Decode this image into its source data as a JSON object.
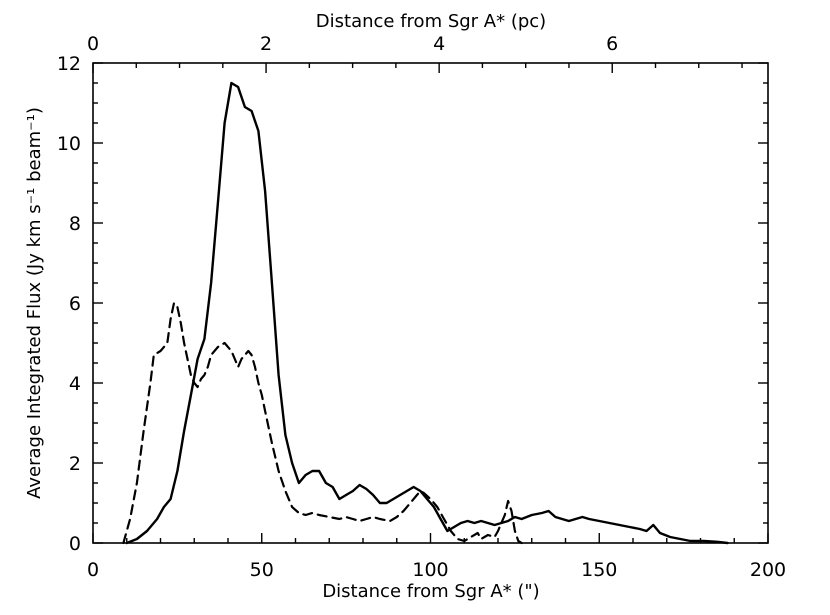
{
  "chart_data": {
    "type": "line",
    "xlabel": "Distance from Sgr A* (\")",
    "x2label": "Distance from Sgr A* (pc)",
    "ylabel": "Average Integrated Flux (Jy km s⁻¹ beam⁻¹)",
    "xlim": [
      0,
      200
    ],
    "ylim": [
      0,
      12
    ],
    "x_ticks": [
      0,
      50,
      100,
      150,
      200
    ],
    "y_ticks": [
      0,
      2,
      4,
      6,
      8,
      10,
      12
    ],
    "x2lim": [
      0,
      7.8
    ],
    "x2_ticks": [
      0,
      2,
      4,
      6
    ],
    "grid": false,
    "series": [
      {
        "style": "solid",
        "color": "#000000",
        "points": [
          [
            10,
            0.0
          ],
          [
            13,
            0.1
          ],
          [
            16,
            0.3
          ],
          [
            19,
            0.6
          ],
          [
            21,
            0.9
          ],
          [
            23,
            1.1
          ],
          [
            25,
            1.8
          ],
          [
            27,
            2.8
          ],
          [
            29,
            3.7
          ],
          [
            31,
            4.6
          ],
          [
            33,
            5.1
          ],
          [
            35,
            6.5
          ],
          [
            37,
            8.5
          ],
          [
            39,
            10.5
          ],
          [
            41,
            11.5
          ],
          [
            43,
            11.4
          ],
          [
            45,
            10.9
          ],
          [
            47,
            10.8
          ],
          [
            49,
            10.3
          ],
          [
            51,
            8.8
          ],
          [
            53,
            6.5
          ],
          [
            55,
            4.2
          ],
          [
            57,
            2.7
          ],
          [
            59,
            2.0
          ],
          [
            61,
            1.5
          ],
          [
            63,
            1.7
          ],
          [
            65,
            1.8
          ],
          [
            67,
            1.8
          ],
          [
            69,
            1.5
          ],
          [
            71,
            1.4
          ],
          [
            73,
            1.1
          ],
          [
            75,
            1.2
          ],
          [
            77,
            1.3
          ],
          [
            79,
            1.45
          ],
          [
            81,
            1.35
          ],
          [
            83,
            1.2
          ],
          [
            85,
            1.0
          ],
          [
            87,
            1.0
          ],
          [
            89,
            1.1
          ],
          [
            91,
            1.2
          ],
          [
            93,
            1.3
          ],
          [
            95,
            1.4
          ],
          [
            97,
            1.3
          ],
          [
            99,
            1.1
          ],
          [
            101,
            0.9
          ],
          [
            103,
            0.6
          ],
          [
            105,
            0.3
          ],
          [
            107,
            0.4
          ],
          [
            109,
            0.5
          ],
          [
            111,
            0.55
          ],
          [
            113,
            0.5
          ],
          [
            115,
            0.55
          ],
          [
            117,
            0.5
          ],
          [
            119,
            0.45
          ],
          [
            121,
            0.5
          ],
          [
            123,
            0.55
          ],
          [
            125,
            0.65
          ],
          [
            127,
            0.6
          ],
          [
            130,
            0.7
          ],
          [
            133,
            0.75
          ],
          [
            135,
            0.8
          ],
          [
            137,
            0.65
          ],
          [
            139,
            0.6
          ],
          [
            141,
            0.55
          ],
          [
            143,
            0.6
          ],
          [
            145,
            0.65
          ],
          [
            147,
            0.6
          ],
          [
            150,
            0.55
          ],
          [
            153,
            0.5
          ],
          [
            156,
            0.45
          ],
          [
            159,
            0.4
          ],
          [
            162,
            0.35
          ],
          [
            164,
            0.3
          ],
          [
            166,
            0.45
          ],
          [
            168,
            0.25
          ],
          [
            171,
            0.15
          ],
          [
            174,
            0.1
          ],
          [
            177,
            0.05
          ],
          [
            181,
            0.05
          ],
          [
            185,
            0.03
          ],
          [
            188,
            0.0
          ]
        ]
      },
      {
        "style": "dashed",
        "color": "#000000",
        "points": [
          [
            9,
            0.0
          ],
          [
            11,
            0.6
          ],
          [
            13,
            1.5
          ],
          [
            15,
            2.8
          ],
          [
            17,
            4.0
          ],
          [
            18,
            4.7
          ],
          [
            20,
            4.8
          ],
          [
            22,
            5.0
          ],
          [
            23,
            5.6
          ],
          [
            24,
            6.0
          ],
          [
            25,
            5.9
          ],
          [
            26,
            5.5
          ],
          [
            27,
            5.0
          ],
          [
            28,
            4.6
          ],
          [
            29,
            4.2
          ],
          [
            30,
            4.0
          ],
          [
            31,
            3.9
          ],
          [
            32,
            4.1
          ],
          [
            33,
            4.2
          ],
          [
            34,
            4.4
          ],
          [
            35,
            4.7
          ],
          [
            37,
            4.9
          ],
          [
            39,
            5.0
          ],
          [
            41,
            4.8
          ],
          [
            42,
            4.6
          ],
          [
            43,
            4.4
          ],
          [
            44,
            4.6
          ],
          [
            45,
            4.7
          ],
          [
            46,
            4.8
          ],
          [
            47,
            4.7
          ],
          [
            48,
            4.4
          ],
          [
            49,
            4.0
          ],
          [
            50,
            3.7
          ],
          [
            51,
            3.3
          ],
          [
            53,
            2.5
          ],
          [
            55,
            1.8
          ],
          [
            57,
            1.3
          ],
          [
            59,
            0.9
          ],
          [
            61,
            0.75
          ],
          [
            63,
            0.7
          ],
          [
            65,
            0.75
          ],
          [
            67,
            0.7
          ],
          [
            70,
            0.65
          ],
          [
            73,
            0.6
          ],
          [
            75,
            0.65
          ],
          [
            77,
            0.6
          ],
          [
            79,
            0.55
          ],
          [
            81,
            0.6
          ],
          [
            83,
            0.65
          ],
          [
            85,
            0.6
          ],
          [
            88,
            0.55
          ],
          [
            90,
            0.65
          ],
          [
            92,
            0.8
          ],
          [
            94,
            1.0
          ],
          [
            96,
            1.2
          ],
          [
            97,
            1.3
          ],
          [
            98,
            1.25
          ],
          [
            100,
            1.1
          ],
          [
            102,
            0.9
          ],
          [
            104,
            0.6
          ],
          [
            106,
            0.3
          ],
          [
            108,
            0.1
          ],
          [
            110,
            0.05
          ],
          [
            112,
            0.15
          ],
          [
            114,
            0.25
          ],
          [
            115,
            0.1
          ],
          [
            117,
            0.2
          ],
          [
            119,
            0.15
          ],
          [
            120,
            0.3
          ],
          [
            122,
            0.7
          ],
          [
            123,
            1.05
          ],
          [
            124,
            0.8
          ],
          [
            125,
            0.3
          ],
          [
            126,
            0.05
          ],
          [
            127,
            0.0
          ]
        ]
      }
    ]
  }
}
